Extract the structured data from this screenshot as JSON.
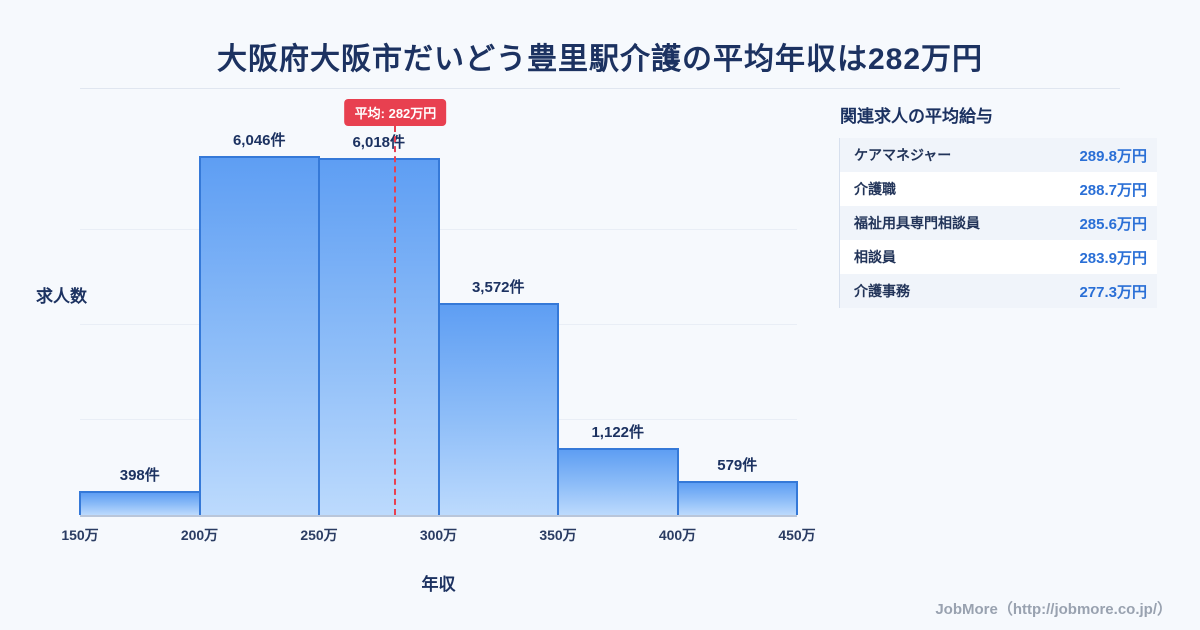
{
  "title": "大阪府大阪市だいどう豊里駅介護の平均年収は282万円",
  "chart_data": {
    "type": "bar",
    "title": "大阪府大阪市だいどう豊里駅介護の平均年収は282万円",
    "categories": [
      "150万-200万",
      "200万-250万",
      "250万-300万",
      "300万-350万",
      "350万-400万",
      "400万-450万"
    ],
    "bin_edges": [
      "150万",
      "200万",
      "250万",
      "300万",
      "350万",
      "400万",
      "450万"
    ],
    "values": [
      398,
      6046,
      6018,
      3572,
      1122,
      579
    ],
    "value_labels": [
      "398件",
      "6,046件",
      "6,018件",
      "3,572件",
      "1,122件",
      "579件"
    ],
    "xlabel": "年収",
    "ylabel": "求人数",
    "ylim": [
      0,
      6400
    ],
    "x_range": [
      150,
      450
    ],
    "grid": "faint-horizontal",
    "legend": "none",
    "average": {
      "value": 282,
      "label": "平均: 282万円"
    }
  },
  "side_panel": {
    "title": "関連求人の平均給与",
    "rows": [
      {
        "label": "ケアマネジャー",
        "value": "289.8万円"
      },
      {
        "label": "介護職",
        "value": "288.7万円"
      },
      {
        "label": "福祉用具専門相談員",
        "value": "285.6万円"
      },
      {
        "label": "相談員",
        "value": "283.9万円"
      },
      {
        "label": "介護事務",
        "value": "277.3万円"
      }
    ]
  },
  "footer": {
    "credit": "JobMore（http://jobmore.co.jp/）"
  },
  "colors": {
    "background": "#f6f9fd",
    "title_navy": "#1c3261",
    "bar_gradient_top": "#5e9ef3",
    "bar_gradient_bottom": "#bcdafd",
    "bar_border": "#3579d8",
    "average_red": "#e84050",
    "value_blue": "#2a6fd6",
    "footer_gray": "#99a2b0"
  }
}
